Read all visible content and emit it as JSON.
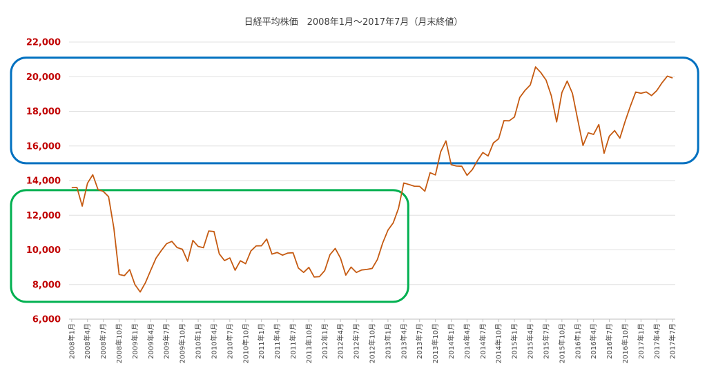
{
  "chart_data": {
    "type": "line",
    "title": "日経平均株価　2008年1月～2017年7月（月末終値）",
    "ylim": [
      6000,
      22000
    ],
    "yticks": [
      "6,000",
      "8,000",
      "10,000",
      "12,000",
      "14,000",
      "16,000",
      "18,000",
      "20,000",
      "22,000"
    ],
    "ytick_values": [
      6000,
      8000,
      10000,
      12000,
      14000,
      16000,
      18000,
      20000,
      22000
    ],
    "xtick_labels": [
      "2008年1月",
      "2008年4月",
      "2008年7月",
      "2008年10月",
      "2009年1月",
      "2009年4月",
      "2009年7月",
      "2009年10月",
      "2010年1月",
      "2010年4月",
      "2010年7月",
      "2010年10月",
      "2011年1月",
      "2011年4月",
      "2011年7月",
      "2011年10月",
      "2012年1月",
      "2012年4月",
      "2012年7月",
      "2012年10月",
      "2013年1月",
      "2013年4月",
      "2013年7月",
      "2013年10月",
      "2014年1月",
      "2014年4月",
      "2014年7月",
      "2014年10月",
      "2015年1月",
      "2015年4月",
      "2015年7月",
      "2015年10月",
      "2016年1月",
      "2016年4月",
      "2016年7月",
      "2016年10月",
      "2017年1月",
      "2017年4月",
      "2017年7月"
    ],
    "grid": true,
    "legend": "none",
    "line_color": "#c55a11",
    "highlight_boxes": [
      {
        "color": "#0070c0",
        "x_from": "2008年1月",
        "x_to": "2017年7月",
        "y_from": 15000,
        "y_to": 21100
      },
      {
        "color": "#00b050",
        "x_from": "2008年1月",
        "x_to": "2012年12月",
        "y_from": 7000,
        "y_to": 13450
      }
    ],
    "series": [
      {
        "values": [
          13592,
          13603,
          12525,
          13849,
          14338,
          13481,
          13376,
          13072,
          11259,
          8576,
          8512,
          8859,
          7994,
          7568,
          8109,
          8828,
          9522,
          9958,
          10356,
          10492,
          10133,
          10034,
          9345,
          10546,
          10198,
          10126,
          11089,
          11057,
          9768,
          9382,
          9537,
          8824,
          9369,
          9202,
          9937,
          10228,
          10237,
          10624,
          9755,
          9849,
          9693,
          9816,
          9833,
          8955,
          8700,
          8988,
          8434,
          8455,
          8802,
          9723,
          10083,
          9520,
          8542,
          9007,
          8695,
          8839,
          8870,
          8928,
          9446,
          10395,
          11138,
          11559,
          12397,
          13860,
          13774,
          13677,
          13668,
          13388,
          14456,
          14327,
          15662,
          16291,
          14914,
          14841,
          14828,
          14304,
          14632,
          15162,
          15621,
          15425,
          16174,
          16414,
          17460,
          17451,
          17674,
          18798,
          19207,
          19520,
          20563,
          20236,
          19800,
          18890,
          17388,
          19083,
          19747,
          19034,
          17518,
          16027,
          16759,
          16666,
          17235,
          15576,
          16569,
          16887,
          16450,
          17425,
          18308,
          19114,
          19041,
          19119,
          18909,
          19197,
          19651,
          20033,
          19925
        ]
      }
    ]
  }
}
